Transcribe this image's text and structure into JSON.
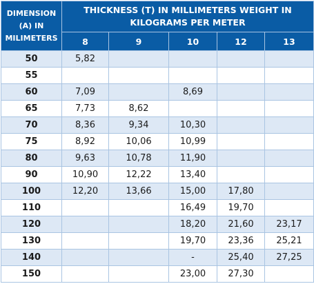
{
  "table": {
    "dimension_header": "DIMENSION (A) IN MILIMETERS",
    "group_header": "THICKNESS (T) IN MILLIMETERS WEIGHT IN KILOGRAMS PER METER",
    "thickness_columns": [
      "8",
      "9",
      "10",
      "12",
      "13"
    ],
    "rows": [
      {
        "dim": "50",
        "cells": [
          "5,82",
          "",
          "",
          "",
          ""
        ]
      },
      {
        "dim": "55",
        "cells": [
          "",
          "",
          "",
          "",
          ""
        ]
      },
      {
        "dim": "60",
        "cells": [
          "7,09",
          "",
          "8,69",
          "",
          ""
        ]
      },
      {
        "dim": "65",
        "cells": [
          "7,73",
          "8,62",
          "",
          "",
          ""
        ]
      },
      {
        "dim": "70",
        "cells": [
          "8,36",
          "9,34",
          "10,30",
          "",
          ""
        ]
      },
      {
        "dim": "75",
        "cells": [
          "8,92",
          "10,06",
          "10,99",
          "",
          ""
        ]
      },
      {
        "dim": "80",
        "cells": [
          "9,63",
          "10,78",
          "11,90",
          "",
          ""
        ]
      },
      {
        "dim": "90",
        "cells": [
          "10,90",
          "12,22",
          "13,40",
          "",
          ""
        ]
      },
      {
        "dim": "100",
        "cells": [
          "12,20",
          "13,66",
          "15,00",
          "17,80",
          ""
        ]
      },
      {
        "dim": "110",
        "cells": [
          "",
          "",
          "16,49",
          "19,70",
          ""
        ]
      },
      {
        "dim": "120",
        "cells": [
          "",
          "",
          "18,20",
          "21,60",
          "23,17"
        ]
      },
      {
        "dim": "130",
        "cells": [
          "",
          "",
          "19,70",
          "23,36",
          "25,21"
        ]
      },
      {
        "dim": "140",
        "cells": [
          "",
          "",
          "-",
          "25,40",
          "27,25"
        ]
      },
      {
        "dim": "150",
        "cells": [
          "",
          "",
          "23,00",
          "27,30",
          ""
        ]
      }
    ]
  },
  "colors": {
    "header_bg": "#0a5ca5",
    "header_text": "#ffffff",
    "stripe": "#dde8f5",
    "border": "#a9c4e2"
  }
}
